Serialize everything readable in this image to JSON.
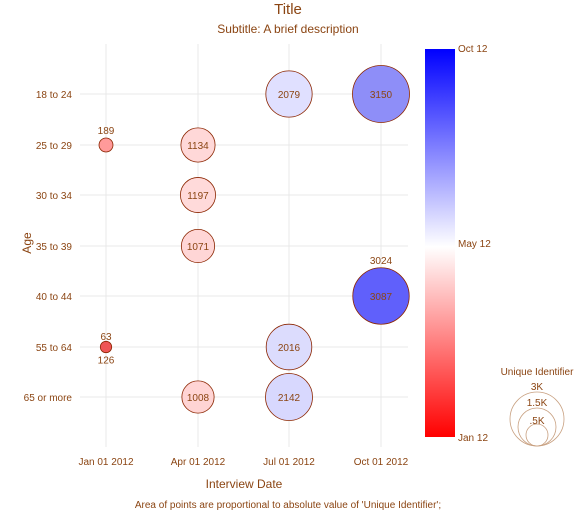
{
  "chart_data": {
    "type": "scatter",
    "title": "Title",
    "subtitle": "Subtitle: A brief description",
    "xlabel": "Interview Date",
    "ylabel": "Age",
    "caption": "Area of points are proportional to absolute value of 'Unique Identifier';",
    "x_categories": [
      "Jan 01 2012",
      "Apr 01 2012",
      "Jul 01 2012",
      "Oct 01 2012"
    ],
    "y_categories": [
      "18 to 24",
      "25 to 29",
      "30 to 34",
      "35 to 39",
      "40 to 44",
      "55 to 64",
      "65 or more"
    ],
    "grid": true,
    "points": [
      {
        "x": "Jul 01 2012",
        "y": "18 to 24",
        "size": 2079,
        "color": "#e0e0ff",
        "label": "2079",
        "label_pos": "center"
      },
      {
        "x": "Oct 01 2012",
        "y": "18 to 24",
        "size": 3150,
        "color": "#8e8ef8",
        "label": "3150",
        "label_pos": "center"
      },
      {
        "x": "Jan 01 2012",
        "y": "25 to 29",
        "size": 189,
        "color": "#ff9a9a",
        "label": "189",
        "label_pos": "above"
      },
      {
        "x": "Apr 01 2012",
        "y": "25 to 29",
        "size": 1134,
        "color": "#ffd8d8",
        "label": "1134",
        "label_pos": "center"
      },
      {
        "x": "Apr 01 2012",
        "y": "30 to 34",
        "size": 1197,
        "color": "#ffdada",
        "label": "1197",
        "label_pos": "center"
      },
      {
        "x": "Apr 01 2012",
        "y": "35 to 39",
        "size": 1071,
        "color": "#ffd6d6",
        "label": "1071",
        "label_pos": "center"
      },
      {
        "x": "Oct 01 2012",
        "y": "40 to 44",
        "size": 3024,
        "color": "#8e8ef8",
        "label": "3024",
        "label_pos": "above"
      },
      {
        "x": "Oct 01 2012",
        "y": "40 to 44",
        "size": 3087,
        "color": "#6060fb",
        "label": "3087",
        "label_pos": "center"
      },
      {
        "x": "Jan 01 2012",
        "y": "55 to 64",
        "size": 63,
        "color": "#ff8080",
        "label": "63",
        "label_pos": "above"
      },
      {
        "x": "Jan 01 2012",
        "y": "55 to 64",
        "size": 126,
        "color": "#ee5555",
        "label": "126",
        "label_pos": "below"
      },
      {
        "x": "Jul 01 2012",
        "y": "55 to 64",
        "size": 2016,
        "color": "#dcdcfd",
        "label": "2016",
        "label_pos": "center"
      },
      {
        "x": "Apr 01 2012",
        "y": "65 or more",
        "size": 1008,
        "color": "#ffd4d4",
        "label": "1008",
        "label_pos": "center"
      },
      {
        "x": "Jul 01 2012",
        "y": "65 or more",
        "size": 2142,
        "color": "#d8d8fe",
        "label": "2142",
        "label_pos": "center"
      }
    ],
    "colorbar": {
      "title": "",
      "labels": [
        "Oct 12",
        "May 12",
        "Jan 12"
      ],
      "colors": {
        "high": "#0000ff",
        "mid": "#ffffff",
        "low": "#ff0000"
      }
    },
    "size_legend": {
      "title": "Unique Identifier",
      "labels": [
        "3K",
        "1.5K",
        ".5K"
      ],
      "values": [
        3000,
        1500,
        500
      ]
    },
    "colors": {
      "text": "#8b4513",
      "point_stroke": "#8b2500",
      "grid": "#e8e8e8"
    }
  }
}
